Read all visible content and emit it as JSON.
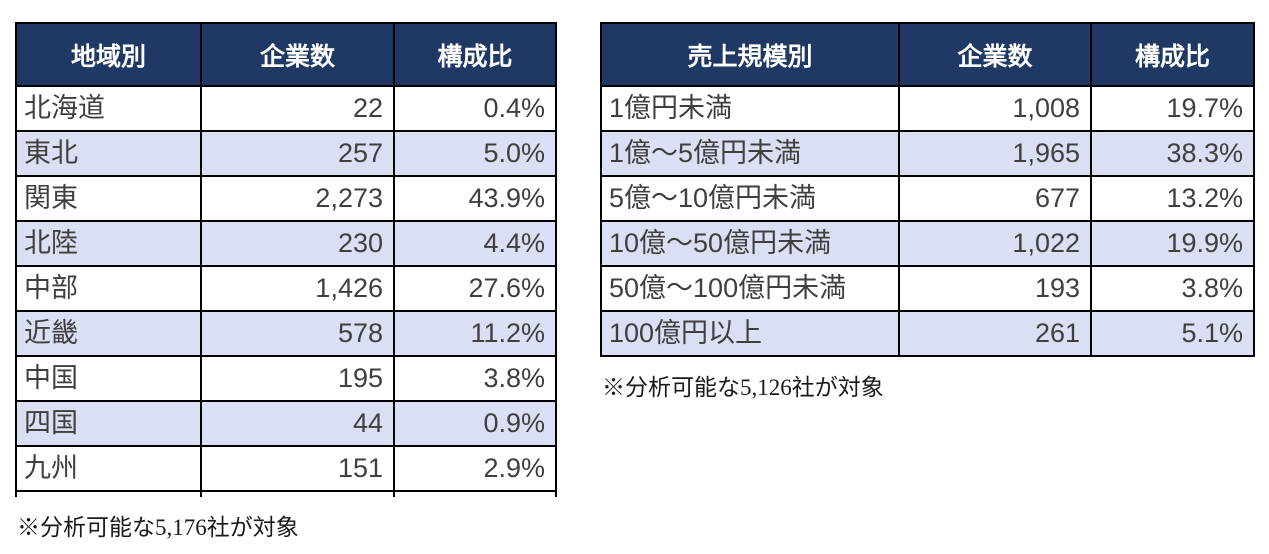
{
  "colors": {
    "header_bg": "#1f3864",
    "header_text": "#ffffff",
    "row_bg": "#ffffff",
    "row_alt_bg": "#dadff3",
    "grid_border": "#000000",
    "cell_text": "#3f3f3f",
    "footnote_text": "#1a1a1a"
  },
  "chart_data": [
    {
      "type": "table",
      "title": "地域別",
      "columns": [
        "地域別",
        "企業数",
        "構成比"
      ],
      "rows": [
        [
          "北海道",
          "22",
          "0.4%"
        ],
        [
          "東北",
          "257",
          "5.0%"
        ],
        [
          "関東",
          "2,273",
          "43.9%"
        ],
        [
          "北陸",
          "230",
          "4.4%"
        ],
        [
          "中部",
          "1,426",
          "27.6%"
        ],
        [
          "近畿",
          "578",
          "11.2%"
        ],
        [
          "中国",
          "195",
          "3.8%"
        ],
        [
          "四国",
          "44",
          "0.9%"
        ],
        [
          "九州",
          "151",
          "2.9%"
        ]
      ],
      "companies_numeric": [
        22,
        257,
        2273,
        230,
        1426,
        578,
        195,
        44,
        151
      ],
      "share_pct_numeric": [
        0.4,
        5.0,
        43.9,
        4.4,
        27.6,
        11.2,
        3.8,
        0.9,
        2.9
      ],
      "footnote": "※分析可能な5,176社が対象"
    },
    {
      "type": "table",
      "title": "売上規模別",
      "columns": [
        "売上規模別",
        "企業数",
        "構成比"
      ],
      "rows": [
        [
          "1億円未満",
          "1,008",
          "19.7%"
        ],
        [
          "1億～5億円未満",
          "1,965",
          "38.3%"
        ],
        [
          "5億～10億円未満",
          "677",
          "13.2%"
        ],
        [
          "10億～50億円未満",
          "1,022",
          "19.9%"
        ],
        [
          "50億～100億円未満",
          "193",
          "3.8%"
        ],
        [
          "100億円以上",
          "261",
          "5.1%"
        ]
      ],
      "companies_numeric": [
        1008,
        1965,
        677,
        1022,
        193,
        261
      ],
      "share_pct_numeric": [
        19.7,
        38.3,
        13.2,
        19.9,
        3.8,
        5.1
      ],
      "footnote": "※分析可能な5,126社が対象"
    }
  ]
}
